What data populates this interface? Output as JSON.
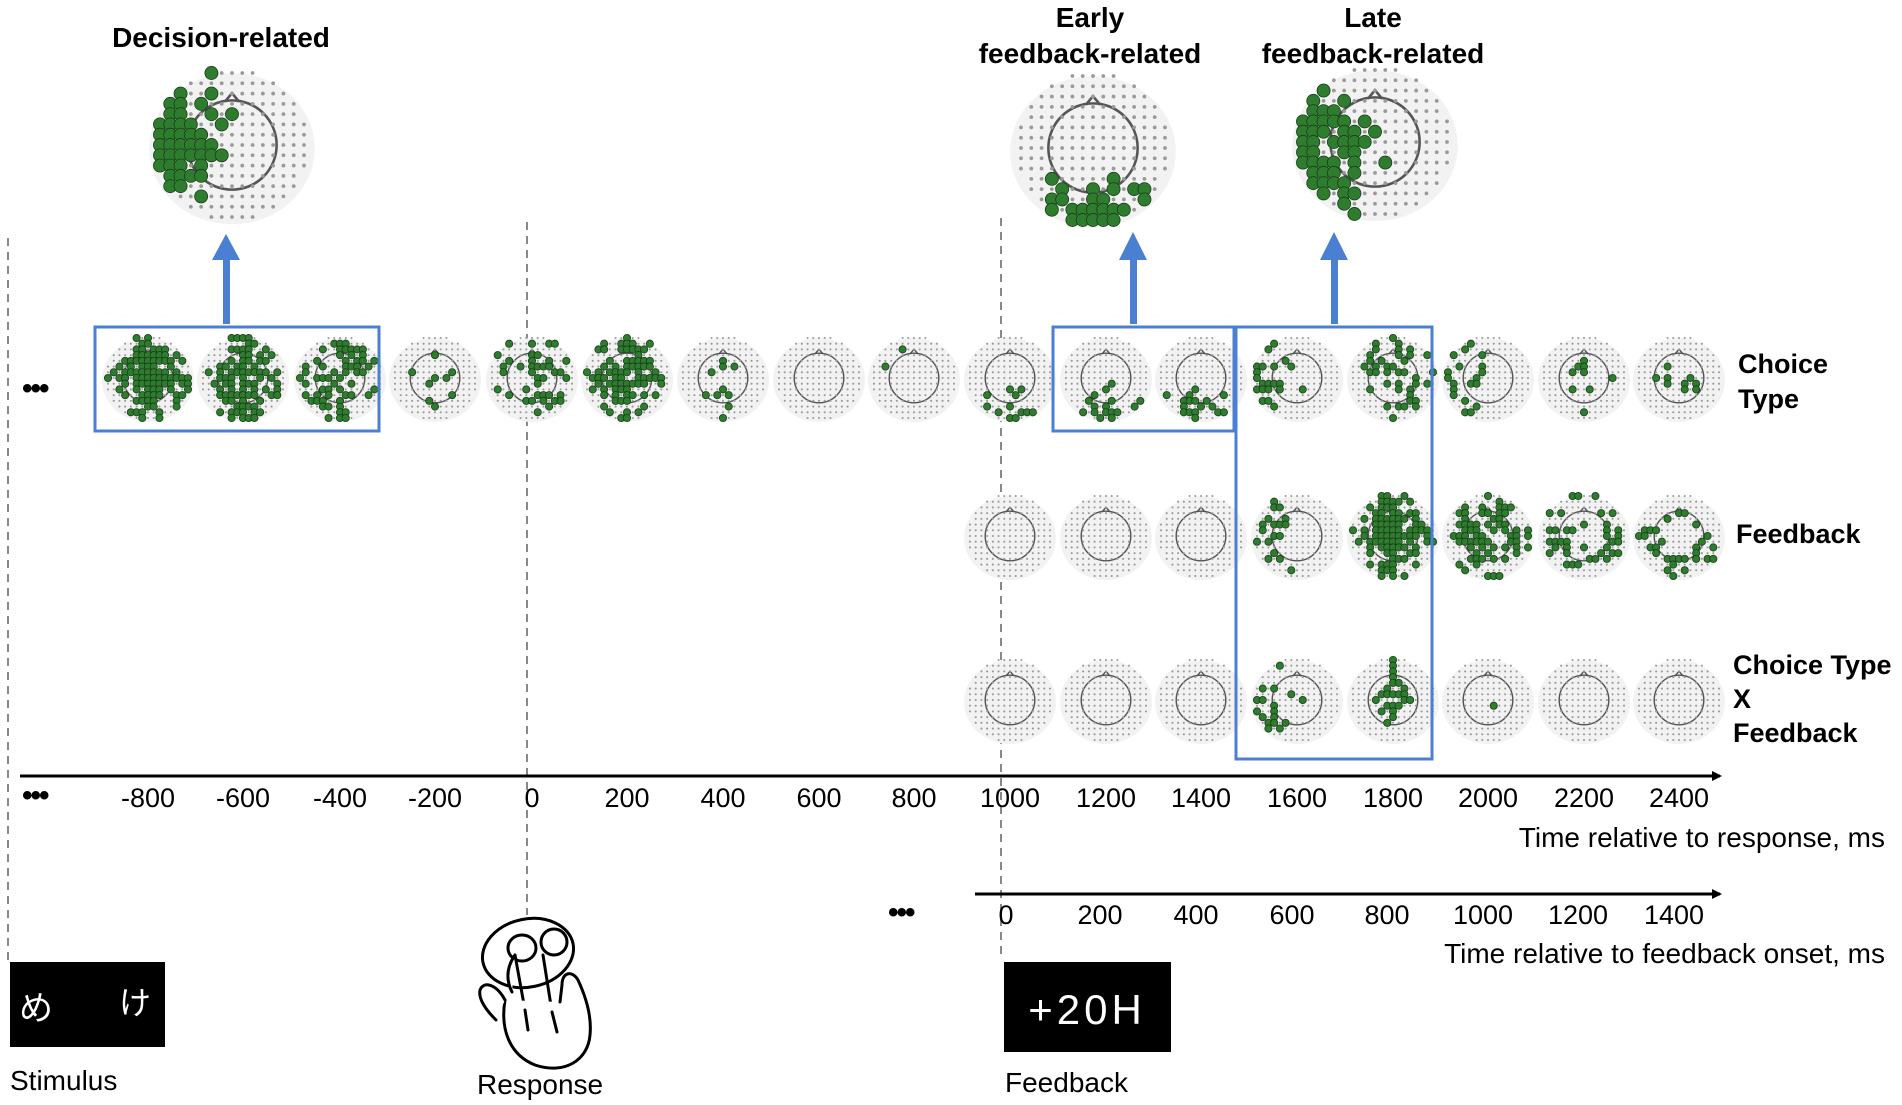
{
  "titles": {
    "decision": "Decision-related",
    "early": [
      "Early",
      "feedback-related"
    ],
    "late": [
      "Late",
      "feedback-related"
    ]
  },
  "row_labels": {
    "choice_type": [
      "Choice",
      "Type"
    ],
    "feedback": [
      "Feedback"
    ],
    "interaction": [
      "Choice Type",
      "X",
      "Feedback"
    ]
  },
  "ellipsis": "•••",
  "response_axis": {
    "ticks": [
      "-800",
      "-600",
      "-400",
      "-200",
      "0",
      "200",
      "400",
      "600",
      "800",
      "1000",
      "1200",
      "1400",
      "1600",
      "1800",
      "2000",
      "2200",
      "2400"
    ],
    "label": "Time relative to response, ms"
  },
  "feedback_axis": {
    "ticks": [
      "0",
      "200",
      "400",
      "600",
      "800",
      "1000",
      "1200",
      "1400"
    ],
    "label": "Time relative to feedback onset, ms"
  },
  "events": {
    "stimulus": "Stimulus",
    "stimulus_glyphs": [
      "め",
      "け"
    ],
    "response": "Response",
    "feedback": "Feedback",
    "feedback_display": "+20H"
  },
  "colors": {
    "highlight_box": "#4a7fd1",
    "arrow": "#4a7fd1",
    "electrode_active": "#2e7d2e",
    "electrode_inactive": "#9a9a9a",
    "head_fill": "#f2f2f2",
    "dashed_line": "#888888"
  },
  "icons": {
    "response": "hand-press-icon"
  },
  "topomaps": {
    "choice_type_activity": [
      0.95,
      0.8,
      0.55,
      0.25,
      0.35,
      0.75,
      0.3,
      0.05,
      0.08,
      0.3,
      0.35,
      0.3,
      0.35,
      0.45,
      0.3,
      0.25,
      0.2
    ],
    "feedback_activity": [
      0,
      0,
      0,
      0.35,
      0.95,
      0.6,
      0.45,
      0.3
    ],
    "interaction_activity": [
      0,
      0,
      0,
      0.45,
      0.5,
      0.03,
      0,
      0
    ]
  }
}
